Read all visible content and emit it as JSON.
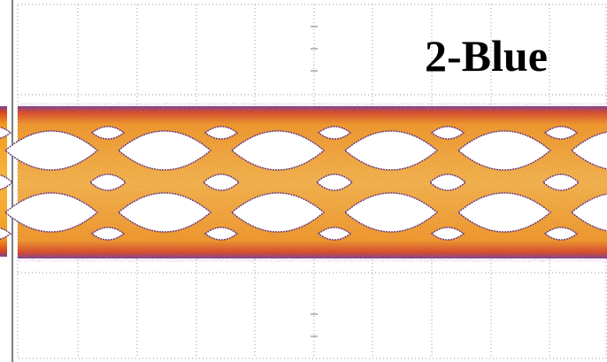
{
  "label": "2-Blue"
}
